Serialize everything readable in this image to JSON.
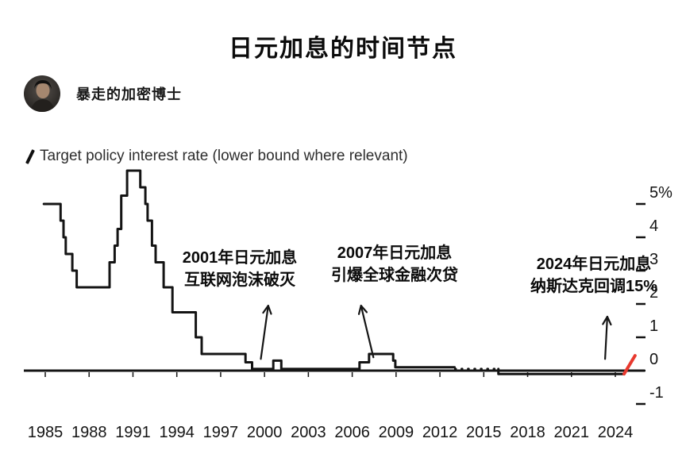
{
  "header": {
    "title": "日元加息的时间节点",
    "author": "暴走的加密博士"
  },
  "legend": {
    "label": "Target policy interest rate (lower bound where relevant)"
  },
  "annotations": {
    "a2001": {
      "line1": "2001年日元加息",
      "line2": "互联网泡沫破灭"
    },
    "a2007": {
      "line1": "2007年日元加息",
      "line2": "引爆全球金融次贷"
    },
    "a2024": {
      "line1": "2024年日元加息",
      "line2": "纳斯达克回调15%"
    }
  },
  "chart_data": {
    "type": "line",
    "title": "Target policy interest rate (lower bound where relevant)",
    "unit": "%",
    "xlim": [
      1983.5,
      2026.0
    ],
    "ylim": [
      -1,
      6.2
    ],
    "grid": false,
    "legend_position": "top-left",
    "axis_color": "#141414",
    "line_color": "#141414",
    "highlight_color": "#e8392e",
    "x_ticks": [
      1985,
      1988,
      1991,
      1994,
      1997,
      2000,
      2003,
      2006,
      2009,
      2012,
      2015,
      2018,
      2021,
      2024
    ],
    "y_ticks": [
      {
        "value": 5,
        "label": "5%"
      },
      {
        "value": 4,
        "label": "4"
      },
      {
        "value": 3,
        "label": "3"
      },
      {
        "value": 2,
        "label": "2"
      },
      {
        "value": 1,
        "label": "1"
      },
      {
        "value": 0,
        "label": "0"
      },
      {
        "value": -1,
        "label": "-1"
      }
    ],
    "segments": [
      {
        "name": "policy-rate-main",
        "style": "solid",
        "color": "#141414",
        "width": 3,
        "points": [
          [
            1984.9,
            5.0
          ],
          [
            1986.05,
            5.0
          ],
          [
            1986.05,
            4.5
          ],
          [
            1986.25,
            4.5
          ],
          [
            1986.25,
            4.0
          ],
          [
            1986.4,
            4.0
          ],
          [
            1986.4,
            3.5
          ],
          [
            1986.85,
            3.5
          ],
          [
            1986.85,
            3.0
          ],
          [
            1987.15,
            3.0
          ],
          [
            1987.15,
            2.5
          ],
          [
            1989.4,
            2.5
          ],
          [
            1989.4,
            3.25
          ],
          [
            1989.75,
            3.25
          ],
          [
            1989.75,
            3.75
          ],
          [
            1989.95,
            3.75
          ],
          [
            1989.95,
            4.25
          ],
          [
            1990.2,
            4.25
          ],
          [
            1990.2,
            5.25
          ],
          [
            1990.6,
            5.25
          ],
          [
            1990.6,
            6.0
          ],
          [
            1991.5,
            6.0
          ],
          [
            1991.5,
            5.5
          ],
          [
            1991.85,
            5.5
          ],
          [
            1991.85,
            5.0
          ],
          [
            1992.0,
            5.0
          ],
          [
            1992.0,
            4.5
          ],
          [
            1992.3,
            4.5
          ],
          [
            1992.3,
            3.75
          ],
          [
            1992.55,
            3.75
          ],
          [
            1992.55,
            3.25
          ],
          [
            1993.1,
            3.25
          ],
          [
            1993.1,
            2.5
          ],
          [
            1993.7,
            2.5
          ],
          [
            1993.7,
            1.75
          ],
          [
            1995.3,
            1.75
          ],
          [
            1995.3,
            1.0
          ],
          [
            1995.7,
            1.0
          ],
          [
            1995.7,
            0.5
          ],
          [
            1998.7,
            0.5
          ],
          [
            1998.7,
            0.25
          ],
          [
            1999.15,
            0.25
          ],
          [
            1999.15,
            0.05
          ],
          [
            2000.6,
            0.05
          ],
          [
            2000.6,
            0.3
          ],
          [
            2001.15,
            0.3
          ],
          [
            2001.15,
            0.05
          ],
          [
            2006.5,
            0.05
          ],
          [
            2006.5,
            0.25
          ],
          [
            2007.15,
            0.25
          ],
          [
            2007.15,
            0.5
          ],
          [
            2008.8,
            0.5
          ],
          [
            2008.8,
            0.3
          ],
          [
            2008.95,
            0.3
          ],
          [
            2008.95,
            0.1
          ],
          [
            2013.0,
            0.1
          ]
        ]
      },
      {
        "name": "policy-rate-dotted",
        "style": "dotted",
        "color": "#141414",
        "width": 3,
        "points": [
          [
            2013.05,
            0.05
          ],
          [
            2015.95,
            0.05
          ]
        ]
      },
      {
        "name": "policy-rate-negative",
        "style": "solid",
        "color": "#141414",
        "width": 3,
        "points": [
          [
            2016.0,
            0.05
          ],
          [
            2016.0,
            -0.1
          ],
          [
            2024.55,
            -0.1
          ]
        ]
      },
      {
        "name": "policy-rate-2024-hike",
        "style": "solid",
        "color": "#e8392e",
        "width": 4,
        "points": [
          [
            2024.6,
            -0.1
          ],
          [
            2025.35,
            0.45
          ]
        ]
      }
    ],
    "arrows": [
      {
        "from": [
          1999.75,
          0.35
        ],
        "to": [
          2000.25,
          1.95
        ]
      },
      {
        "from": [
          2007.45,
          0.4
        ],
        "to": [
          2006.6,
          1.95
        ]
      },
      {
        "from": [
          2023.3,
          0.35
        ],
        "to": [
          2023.45,
          1.62
        ]
      }
    ]
  }
}
